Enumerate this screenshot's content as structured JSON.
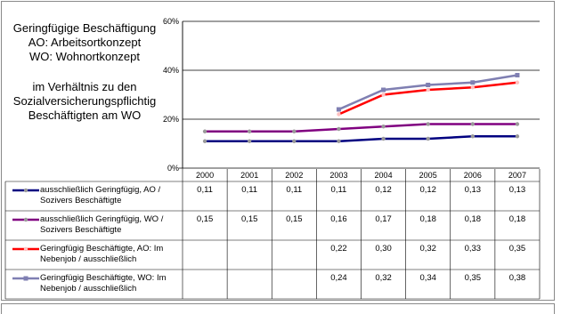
{
  "note": {
    "line1": "Geringfügige Beschäftigung",
    "line2": "AO: Arbeitsortkonzept",
    "line3": "WO: Wohnortkonzept",
    "line4": "im Verhältnis zu den",
    "line5": "Sozialversicherungspflichtig",
    "line6": "Beschäftigten am WO"
  },
  "chart_data": {
    "type": "line",
    "x": [
      "2000",
      "2001",
      "2002",
      "2003",
      "2004",
      "2005",
      "2006",
      "2007"
    ],
    "ylim": [
      0,
      0.6
    ],
    "y_ticks": [
      "0%",
      "20%",
      "40%",
      "60%"
    ],
    "grid": true,
    "series": [
      {
        "name": "ausschließlich Geringfügig, AO / Sozivers Beschäftigte",
        "color": "#000080",
        "values": [
          0.11,
          0.11,
          0.11,
          0.11,
          0.12,
          0.12,
          0.13,
          0.13
        ],
        "labels": [
          "0,11",
          "0,11",
          "0,11",
          "0,11",
          "0,12",
          "0,12",
          "0,13",
          "0,13"
        ]
      },
      {
        "name": "ausschließlich Geringfügig, WO / Sozivers Beschäftigte",
        "color": "#800080",
        "values": [
          0.15,
          0.15,
          0.15,
          0.16,
          0.17,
          0.18,
          0.18,
          0.18
        ],
        "labels": [
          "0,15",
          "0,15",
          "0,15",
          "0,16",
          "0,17",
          "0,18",
          "0,18",
          "0,18"
        ]
      },
      {
        "name": "Geringfügig Beschäftigte, AO: Im Nebenjob / ausschließlich",
        "color": "#ff0000",
        "values": [
          null,
          null,
          null,
          0.22,
          0.3,
          0.32,
          0.33,
          0.35
        ],
        "labels": [
          "",
          "",
          "",
          "0,22",
          "0,30",
          "0,32",
          "0,33",
          "0,35"
        ]
      },
      {
        "name": "Geringfügig Beschäftigte, WO: Im Nebenjob / ausschließlich",
        "color": "#7f7fb2",
        "values": [
          null,
          null,
          null,
          0.24,
          0.32,
          0.34,
          0.35,
          0.38
        ],
        "labels": [
          "",
          "",
          "",
          "0,24",
          "0,32",
          "0,34",
          "0,35",
          "0,38"
        ]
      }
    ]
  }
}
